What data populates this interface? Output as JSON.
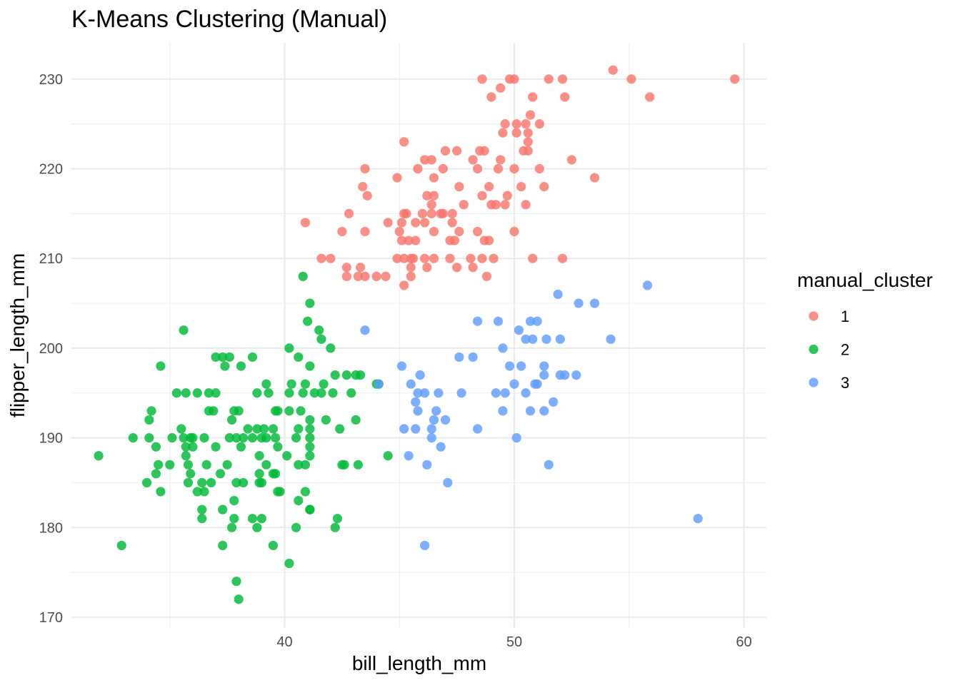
{
  "chart_data": {
    "type": "scatter",
    "title": "K-Means Clustering (Manual)",
    "xlabel": "bill_length_mm",
    "ylabel": "flipper_length_mm",
    "xlim": [
      31.0,
      61.0
    ],
    "ylim": [
      169.9,
      234.0
    ],
    "x_ticks": [
      40,
      50,
      60
    ],
    "y_ticks": [
      170,
      180,
      190,
      200,
      210,
      220,
      230
    ],
    "grid": true,
    "legend": {
      "title": "manual_cluster",
      "position": "right"
    },
    "series": [
      {
        "name": "1",
        "color": "#F8766D",
        "points": [
          [
            48.6,
            230
          ],
          [
            49.8,
            230
          ],
          [
            50.0,
            230
          ],
          [
            51.5,
            230
          ],
          [
            52.1,
            230
          ],
          [
            54.3,
            231
          ],
          [
            55.1,
            230
          ],
          [
            59.6,
            230
          ],
          [
            55.9,
            228
          ],
          [
            49.0,
            228
          ],
          [
            50.8,
            228
          ],
          [
            52.2,
            228
          ],
          [
            49.4,
            229
          ],
          [
            50.7,
            226
          ],
          [
            49.6,
            225
          ],
          [
            50.1,
            225
          ],
          [
            50.5,
            225
          ],
          [
            51.1,
            225
          ],
          [
            49.5,
            224
          ],
          [
            50.1,
            224
          ],
          [
            50.6,
            224
          ],
          [
            45.2,
            223
          ],
          [
            50.4,
            222
          ],
          [
            50.6,
            222
          ],
          [
            48.5,
            222
          ],
          [
            48.7,
            222
          ],
          [
            47.0,
            222
          ],
          [
            47.5,
            222
          ],
          [
            46.1,
            221
          ],
          [
            46.4,
            221
          ],
          [
            48.2,
            221
          ],
          [
            49.4,
            221
          ],
          [
            52.5,
            221
          ],
          [
            50.6,
            223
          ],
          [
            43.5,
            220
          ],
          [
            45.8,
            220
          ],
          [
            46.9,
            220
          ],
          [
            48.4,
            220
          ],
          [
            49.3,
            220
          ],
          [
            50.0,
            220
          ],
          [
            51.1,
            220
          ],
          [
            44.9,
            219
          ],
          [
            46.5,
            219
          ],
          [
            53.5,
            219
          ],
          [
            43.4,
            218
          ],
          [
            47.6,
            218
          ],
          [
            48.9,
            218
          ],
          [
            50.3,
            218
          ],
          [
            51.3,
            218
          ],
          [
            43.6,
            217
          ],
          [
            46.2,
            217
          ],
          [
            46.5,
            217
          ],
          [
            48.6,
            217
          ],
          [
            49.7,
            217
          ],
          [
            49.0,
            216
          ],
          [
            49.2,
            216
          ],
          [
            49.6,
            216
          ],
          [
            50.5,
            216
          ],
          [
            46.4,
            216
          ],
          [
            47.8,
            216
          ],
          [
            42.8,
            215
          ],
          [
            45.2,
            215
          ],
          [
            45.3,
            215
          ],
          [
            46.0,
            215
          ],
          [
            46.4,
            215
          ],
          [
            46.8,
            215
          ],
          [
            46.9,
            215
          ],
          [
            47.3,
            215
          ],
          [
            40.9,
            214
          ],
          [
            44.5,
            214
          ],
          [
            45.1,
            214
          ],
          [
            45.7,
            214
          ],
          [
            46.1,
            214
          ],
          [
            47.3,
            214
          ],
          [
            42.5,
            213
          ],
          [
            43.5,
            213
          ],
          [
            45.0,
            213
          ],
          [
            46.5,
            213
          ],
          [
            47.6,
            213
          ],
          [
            48.4,
            213
          ],
          [
            50.0,
            213
          ],
          [
            45.1,
            212
          ],
          [
            45.4,
            212
          ],
          [
            45.7,
            212
          ],
          [
            47.2,
            212
          ],
          [
            47.4,
            212
          ],
          [
            48.7,
            212
          ],
          [
            48.9,
            212
          ],
          [
            41.6,
            210
          ],
          [
            42.0,
            210
          ],
          [
            44.9,
            210
          ],
          [
            45.2,
            210
          ],
          [
            45.5,
            210
          ],
          [
            45.6,
            210
          ],
          [
            46.1,
            210
          ],
          [
            46.5,
            210
          ],
          [
            47.2,
            210
          ],
          [
            48.1,
            210
          ],
          [
            48.6,
            210
          ],
          [
            49.1,
            210
          ],
          [
            50.8,
            210
          ],
          [
            52.1,
            210
          ],
          [
            42.7,
            209
          ],
          [
            43.3,
            209
          ],
          [
            45.5,
            209
          ],
          [
            46.2,
            209
          ],
          [
            47.5,
            209
          ],
          [
            48.2,
            209
          ],
          [
            42.7,
            208
          ],
          [
            43.2,
            208
          ],
          [
            43.5,
            208
          ],
          [
            44.0,
            208
          ],
          [
            44.4,
            208
          ],
          [
            45.5,
            208
          ],
          [
            48.8,
            208
          ],
          [
            45.2,
            207
          ]
        ]
      },
      {
        "name": "2",
        "color": "#00BA38",
        "points": [
          [
            40.8,
            208
          ],
          [
            41.1,
            205
          ],
          [
            41.0,
            203
          ],
          [
            35.6,
            202
          ],
          [
            41.5,
            202
          ],
          [
            41.6,
            201
          ],
          [
            40.2,
            200
          ],
          [
            42.0,
            200
          ],
          [
            34.6,
            198
          ],
          [
            37.4,
            198
          ],
          [
            38.1,
            198
          ],
          [
            41.1,
            198
          ],
          [
            37.0,
            199
          ],
          [
            37.3,
            199
          ],
          [
            37.6,
            199
          ],
          [
            38.6,
            199
          ],
          [
            40.6,
            199
          ],
          [
            42.2,
            197
          ],
          [
            42.7,
            197
          ],
          [
            43.1,
            197
          ],
          [
            43.3,
            197
          ],
          [
            40.9,
            196
          ],
          [
            44.1,
            196
          ],
          [
            39.2,
            196
          ],
          [
            40.3,
            196
          ],
          [
            41.7,
            196
          ],
          [
            35.3,
            195
          ],
          [
            35.7,
            195
          ],
          [
            36.2,
            195
          ],
          [
            36.7,
            195
          ],
          [
            37.0,
            195
          ],
          [
            38.8,
            195
          ],
          [
            39.3,
            195
          ],
          [
            40.2,
            195
          ],
          [
            40.8,
            195
          ],
          [
            41.3,
            195
          ],
          [
            41.6,
            195
          ],
          [
            42.1,
            195
          ],
          [
            42.9,
            195
          ],
          [
            44.0,
            196
          ],
          [
            34.2,
            193
          ],
          [
            36.7,
            193
          ],
          [
            36.9,
            193
          ],
          [
            37.8,
            193
          ],
          [
            38.0,
            193
          ],
          [
            39.6,
            193
          ],
          [
            39.7,
            193
          ],
          [
            40.2,
            193
          ],
          [
            40.7,
            193
          ],
          [
            34.1,
            192
          ],
          [
            37.7,
            192
          ],
          [
            41.1,
            192
          ],
          [
            41.8,
            192
          ],
          [
            43.1,
            192
          ],
          [
            35.5,
            191
          ],
          [
            38.4,
            191
          ],
          [
            38.8,
            191
          ],
          [
            39.1,
            191
          ],
          [
            39.5,
            191
          ],
          [
            40.6,
            191
          ],
          [
            41.1,
            191
          ],
          [
            42.4,
            191
          ],
          [
            33.4,
            190
          ],
          [
            34.1,
            190
          ],
          [
            35.1,
            190
          ],
          [
            35.6,
            190
          ],
          [
            35.9,
            190
          ],
          [
            36.0,
            190
          ],
          [
            36.5,
            190
          ],
          [
            37.6,
            190
          ],
          [
            37.9,
            190
          ],
          [
            38.2,
            190
          ],
          [
            38.6,
            190
          ],
          [
            39.0,
            190
          ],
          [
            39.2,
            190
          ],
          [
            39.6,
            190
          ],
          [
            40.5,
            190
          ],
          [
            41.1,
            190
          ],
          [
            34.4,
            189
          ],
          [
            35.7,
            189
          ],
          [
            36.0,
            189
          ],
          [
            37.0,
            189
          ],
          [
            38.1,
            189
          ],
          [
            39.7,
            189
          ],
          [
            41.1,
            189
          ],
          [
            31.9,
            188
          ],
          [
            35.7,
            188
          ],
          [
            38.9,
            188
          ],
          [
            40.1,
            188
          ],
          [
            41.1,
            188
          ],
          [
            44.5,
            188
          ],
          [
            34.5,
            187
          ],
          [
            35.0,
            187
          ],
          [
            35.8,
            187
          ],
          [
            36.6,
            187
          ],
          [
            37.5,
            187
          ],
          [
            39.2,
            187
          ],
          [
            40.6,
            187
          ],
          [
            40.9,
            187
          ],
          [
            42.5,
            187
          ],
          [
            42.6,
            187
          ],
          [
            43.2,
            187
          ],
          [
            34.4,
            186
          ],
          [
            35.9,
            186
          ],
          [
            37.2,
            186
          ],
          [
            38.9,
            186
          ],
          [
            39.5,
            186
          ],
          [
            39.6,
            186
          ],
          [
            34.0,
            185
          ],
          [
            35.8,
            185
          ],
          [
            36.4,
            185
          ],
          [
            36.8,
            185
          ],
          [
            37.9,
            185
          ],
          [
            38.2,
            185
          ],
          [
            38.9,
            185
          ],
          [
            39.0,
            185
          ],
          [
            34.6,
            184
          ],
          [
            36.2,
            184
          ],
          [
            36.5,
            184
          ],
          [
            39.7,
            184
          ],
          [
            39.8,
            184
          ],
          [
            40.9,
            184
          ],
          [
            37.8,
            183
          ],
          [
            40.6,
            183
          ],
          [
            41.1,
            182
          ],
          [
            36.4,
            182
          ],
          [
            37.3,
            182
          ],
          [
            41.1,
            182
          ],
          [
            36.4,
            181
          ],
          [
            37.8,
            181
          ],
          [
            38.6,
            181
          ],
          [
            39.0,
            181
          ],
          [
            42.3,
            181
          ],
          [
            32.9,
            178
          ],
          [
            37.3,
            178
          ],
          [
            39.5,
            178
          ],
          [
            37.7,
            180
          ],
          [
            38.8,
            180
          ],
          [
            40.5,
            180
          ],
          [
            42.2,
            180
          ],
          [
            40.2,
            176
          ],
          [
            37.9,
            174
          ],
          [
            38.0,
            172
          ]
        ]
      },
      {
        "name": "3",
        "color": "#619CFF",
        "points": [
          [
            43.5,
            202
          ],
          [
            44.1,
            196
          ],
          [
            45.1,
            198
          ],
          [
            45.2,
            191
          ],
          [
            45.4,
            188
          ],
          [
            45.5,
            196
          ],
          [
            45.7,
            194
          ],
          [
            45.7,
            191
          ],
          [
            45.8,
            195
          ],
          [
            45.8,
            193
          ],
          [
            46.1,
            195
          ],
          [
            46.2,
            187
          ],
          [
            46.4,
            190
          ],
          [
            45.9,
            197
          ],
          [
            46.1,
            178
          ],
          [
            46.4,
            191
          ],
          [
            46.5,
            192
          ],
          [
            46.6,
            193
          ],
          [
            46.7,
            195
          ],
          [
            46.8,
            189
          ],
          [
            47.0,
            192
          ],
          [
            47.1,
            185
          ],
          [
            47.7,
            195
          ],
          [
            47.6,
            199
          ],
          [
            48.2,
            199
          ],
          [
            48.4,
            191
          ],
          [
            48.4,
            203
          ],
          [
            49.2,
            195
          ],
          [
            49.3,
            203
          ],
          [
            49.5,
            200
          ],
          [
            49.5,
            193
          ],
          [
            49.6,
            195
          ],
          [
            49.8,
            198
          ],
          [
            50.0,
            196
          ],
          [
            50.1,
            190
          ],
          [
            50.2,
            202
          ],
          [
            50.3,
            198
          ],
          [
            50.5,
            195
          ],
          [
            50.5,
            201
          ],
          [
            50.7,
            193
          ],
          [
            50.7,
            203
          ],
          [
            50.8,
            201
          ],
          [
            50.9,
            196
          ],
          [
            51.0,
            196
          ],
          [
            51.0,
            203
          ],
          [
            51.3,
            193
          ],
          [
            51.3,
            198
          ],
          [
            51.4,
            201
          ],
          [
            51.3,
            197
          ],
          [
            51.5,
            187
          ],
          [
            51.7,
            194
          ],
          [
            51.9,
            206
          ],
          [
            52.0,
            197
          ],
          [
            52.0,
            201
          ],
          [
            52.2,
            197
          ],
          [
            52.7,
            197
          ],
          [
            52.8,
            205
          ],
          [
            53.5,
            205
          ],
          [
            54.2,
            201
          ],
          [
            55.8,
            207
          ],
          [
            58.0,
            181
          ]
        ]
      }
    ]
  }
}
